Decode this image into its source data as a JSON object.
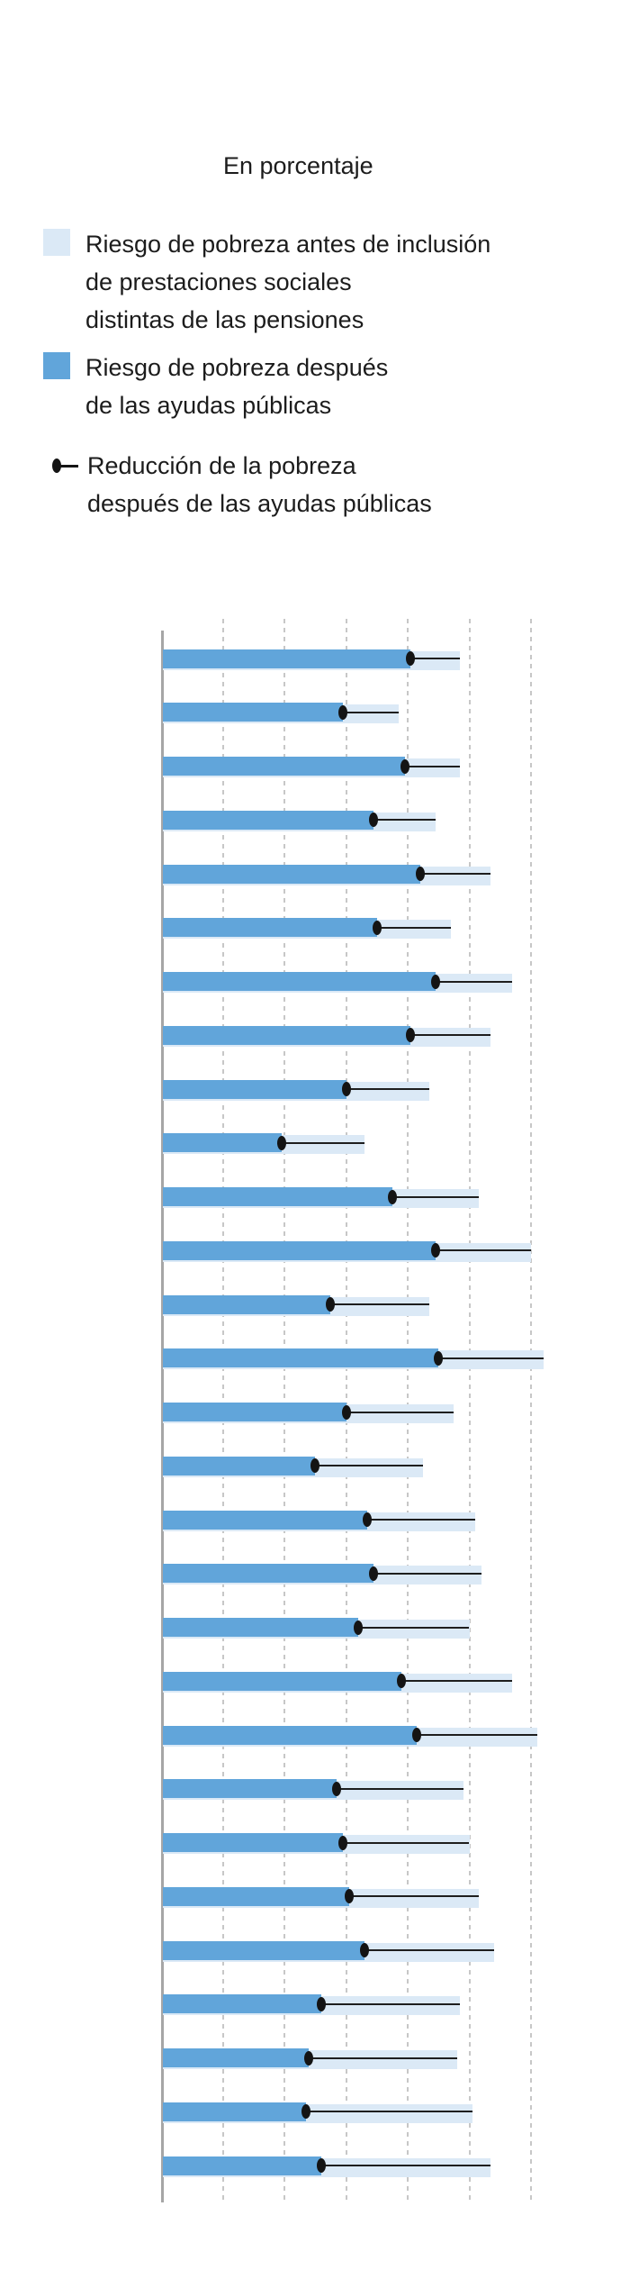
{
  "title": "En porcentaje",
  "legend": {
    "items": [
      {
        "swatch": "square",
        "color": "#dbe9f6",
        "lines": [
          "Riesgo de pobreza antes de inclusión",
          "de prestaciones sociales",
          "distintas de las pensiones"
        ]
      },
      {
        "swatch": "square",
        "color": "#61a5da",
        "lines": [
          "Riesgo de pobreza después",
          "de las ayudas públicas"
        ]
      },
      {
        "swatch": "dot-line",
        "color": "#141414",
        "lines": [
          "Reducción de la pobreza",
          "después de las ayudas públicas"
        ]
      }
    ]
  },
  "chart_data": {
    "type": "bar",
    "orientation": "horizontal",
    "title": "En porcentaje",
    "unit": "percent",
    "x_axis": {
      "min": 0,
      "max": 62,
      "gridlines": [
        10,
        20,
        30,
        40,
        50,
        60
      ],
      "tick_labels_visible": false,
      "grid": "dashed-vertical"
    },
    "category_labels_visible": false,
    "rows": 29,
    "series": [
      {
        "name": "Riesgo de pobreza antes de inclusión de prestaciones sociales distintas de las pensiones",
        "role": "background-bar",
        "color": "#dbe9f6",
        "values": [
          48.5,
          38.5,
          48.5,
          44.5,
          53.5,
          47,
          57,
          53.5,
          43.5,
          33,
          51.5,
          60,
          43.5,
          62,
          47.5,
          42.5,
          51,
          52,
          50,
          57,
          61,
          49,
          50,
          51.5,
          54,
          48.5,
          48,
          50.5,
          53.5
        ]
      },
      {
        "name": "Riesgo de pobreza después de las ayudas públicas",
        "role": "foreground-bar",
        "color": "#61a5da",
        "values": [
          40.5,
          29.5,
          39.5,
          34.5,
          42,
          35,
          44.5,
          40.5,
          30,
          19.5,
          37.5,
          44.5,
          27.5,
          45,
          30,
          25,
          33.5,
          34.5,
          32,
          39,
          41.5,
          28.5,
          29.5,
          30.5,
          33,
          26,
          24,
          23.5,
          26
        ]
      },
      {
        "name": "Reducción de la pobreza después de las ayudas públicas",
        "role": "dot-line-span",
        "color": "#141414",
        "note": "ellipse marker at 'después' value with line extending to 'antes' value"
      }
    ]
  },
  "colors": {
    "bar_after": "#61a5da",
    "bar_before": "#dbe9f6",
    "dot": "#141414",
    "line": "#1e1e1e",
    "gridline": "#c7c7c7",
    "axis": "#a6a6a6",
    "text": "#1c1c1c",
    "background": "#ffffff"
  }
}
